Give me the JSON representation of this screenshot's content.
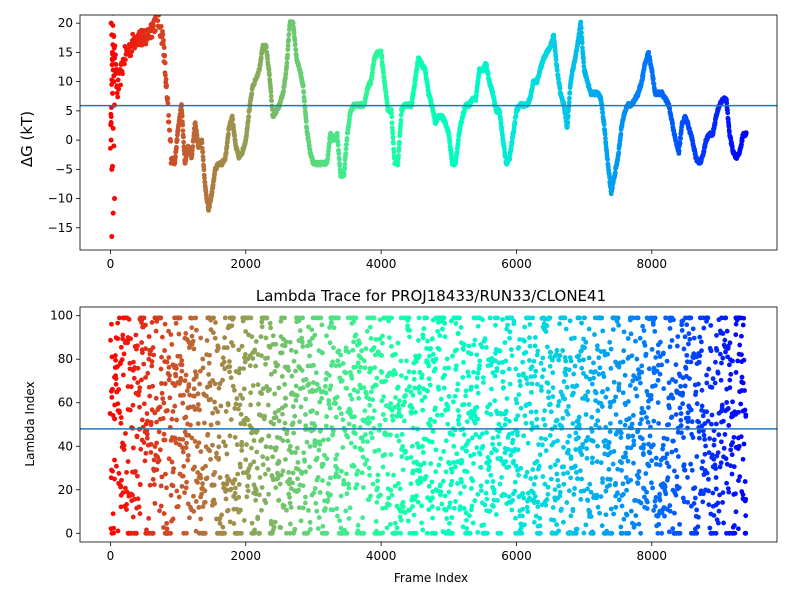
{
  "chart_data": [
    {
      "type": "scatter",
      "title": "",
      "xlabel": "",
      "ylabel": "ΔG (kT)",
      "xlim": [
        -450,
        9850
      ],
      "ylim": [
        -18.8,
        21.4
      ],
      "xticks": [
        0,
        2000,
        4000,
        6000,
        8000
      ],
      "xtick_labels": [
        "0",
        "2000",
        "4000",
        "6000",
        "8000"
      ],
      "yticks": [
        -15,
        -10,
        -5,
        0,
        5,
        10,
        15,
        20
      ],
      "ytick_labels": [
        "−15",
        "−10",
        "−5",
        "0",
        "5",
        "10",
        "15",
        "20"
      ],
      "hline": 5.9,
      "ref_line_color": "#1f77b4",
      "colormap": "rainbow (reversed: early frames red, late frames violet)",
      "x_max": 9400,
      "trace": [
        [
          0,
          0
        ],
        [
          40,
          20
        ],
        [
          100,
          8
        ],
        [
          200,
          14
        ],
        [
          300,
          16
        ],
        [
          400,
          18
        ],
        [
          500,
          17
        ],
        [
          600,
          19
        ],
        [
          700,
          21
        ],
        [
          780,
          17
        ],
        [
          830,
          8
        ],
        [
          900,
          -3
        ],
        [
          950,
          -4
        ],
        [
          1000,
          2
        ],
        [
          1050,
          6
        ],
        [
          1100,
          -4
        ],
        [
          1150,
          -1
        ],
        [
          1200,
          -3
        ],
        [
          1250,
          3
        ],
        [
          1300,
          -1
        ],
        [
          1350,
          0
        ],
        [
          1400,
          -8
        ],
        [
          1450,
          -12
        ],
        [
          1500,
          -9
        ],
        [
          1550,
          -5
        ],
        [
          1600,
          -4
        ],
        [
          1650,
          -4
        ],
        [
          1700,
          -3
        ],
        [
          1750,
          2
        ],
        [
          1800,
          4
        ],
        [
          1850,
          -1
        ],
        [
          1900,
          -3
        ],
        [
          1950,
          -2
        ],
        [
          2000,
          0
        ],
        [
          2050,
          5
        ],
        [
          2100,
          9
        ],
        [
          2200,
          12
        ],
        [
          2250,
          16
        ],
        [
          2300,
          16
        ],
        [
          2350,
          11
        ],
        [
          2400,
          4
        ],
        [
          2450,
          5
        ],
        [
          2500,
          6
        ],
        [
          2550,
          8
        ],
        [
          2600,
          12
        ],
        [
          2650,
          20
        ],
        [
          2700,
          20
        ],
        [
          2750,
          14
        ],
        [
          2800,
          12
        ],
        [
          2850,
          9
        ],
        [
          2900,
          2
        ],
        [
          2950,
          -2
        ],
        [
          3000,
          -4
        ],
        [
          3100,
          -4
        ],
        [
          3200,
          -4
        ],
        [
          3250,
          1
        ],
        [
          3300,
          0
        ],
        [
          3350,
          1
        ],
        [
          3400,
          -6
        ],
        [
          3450,
          -6
        ],
        [
          3500,
          1
        ],
        [
          3550,
          5
        ],
        [
          3600,
          6
        ],
        [
          3650,
          6
        ],
        [
          3700,
          6
        ],
        [
          3750,
          6
        ],
        [
          3800,
          9
        ],
        [
          3850,
          10
        ],
        [
          3900,
          14
        ],
        [
          3950,
          15
        ],
        [
          4000,
          15
        ],
        [
          4050,
          10
        ],
        [
          4100,
          5
        ],
        [
          4150,
          5
        ],
        [
          4200,
          -4
        ],
        [
          4250,
          -4
        ],
        [
          4300,
          5
        ],
        [
          4350,
          6
        ],
        [
          4400,
          6
        ],
        [
          4450,
          6
        ],
        [
          4500,
          10
        ],
        [
          4550,
          14
        ],
        [
          4600,
          13
        ],
        [
          4650,
          12
        ],
        [
          4700,
          8
        ],
        [
          4750,
          6
        ],
        [
          4800,
          3
        ],
        [
          4850,
          4
        ],
        [
          4900,
          4
        ],
        [
          4950,
          3
        ],
        [
          5000,
          1
        ],
        [
          5050,
          -4
        ],
        [
          5100,
          -4
        ],
        [
          5150,
          1
        ],
        [
          5200,
          4
        ],
        [
          5250,
          6
        ],
        [
          5300,
          6
        ],
        [
          5350,
          7
        ],
        [
          5400,
          7
        ],
        [
          5450,
          12
        ],
        [
          5500,
          12
        ],
        [
          5550,
          13
        ],
        [
          5600,
          10
        ],
        [
          5650,
          8
        ],
        [
          5700,
          5
        ],
        [
          5750,
          5
        ],
        [
          5800,
          0
        ],
        [
          5850,
          -4
        ],
        [
          5900,
          -3
        ],
        [
          5950,
          1
        ],
        [
          6000,
          5
        ],
        [
          6050,
          6
        ],
        [
          6100,
          6
        ],
        [
          6150,
          6
        ],
        [
          6200,
          7
        ],
        [
          6250,
          10
        ],
        [
          6300,
          10
        ],
        [
          6350,
          12
        ],
        [
          6400,
          14
        ],
        [
          6450,
          15
        ],
        [
          6500,
          16
        ],
        [
          6550,
          18
        ],
        [
          6600,
          12
        ],
        [
          6650,
          8
        ],
        [
          6700,
          6
        ],
        [
          6750,
          2
        ],
        [
          6800,
          10
        ],
        [
          6850,
          13
        ],
        [
          6900,
          16
        ],
        [
          6950,
          20
        ],
        [
          7000,
          12
        ],
        [
          7050,
          10
        ],
        [
          7100,
          8
        ],
        [
          7150,
          8
        ],
        [
          7200,
          8
        ],
        [
          7250,
          7
        ],
        [
          7300,
          2
        ],
        [
          7350,
          -4
        ],
        [
          7400,
          -9
        ],
        [
          7450,
          -6
        ],
        [
          7500,
          -3
        ],
        [
          7550,
          2
        ],
        [
          7600,
          5
        ],
        [
          7650,
          6
        ],
        [
          7700,
          6
        ],
        [
          7750,
          7
        ],
        [
          7800,
          8
        ],
        [
          7850,
          10
        ],
        [
          7900,
          13
        ],
        [
          7950,
          15
        ],
        [
          8000,
          12
        ],
        [
          8050,
          8
        ],
        [
          8100,
          8
        ],
        [
          8150,
          8
        ],
        [
          8200,
          7
        ],
        [
          8250,
          6
        ],
        [
          8300,
          3
        ],
        [
          8350,
          0
        ],
        [
          8400,
          -2
        ],
        [
          8450,
          3
        ],
        [
          8500,
          4
        ],
        [
          8550,
          2
        ],
        [
          8600,
          0
        ],
        [
          8650,
          -3
        ],
        [
          8700,
          -4
        ],
        [
          8750,
          -3
        ],
        [
          8800,
          0
        ],
        [
          8850,
          1
        ],
        [
          8900,
          1
        ],
        [
          8950,
          4
        ],
        [
          9000,
          6
        ],
        [
          9050,
          7
        ],
        [
          9100,
          7
        ],
        [
          9150,
          1
        ],
        [
          9200,
          -2
        ],
        [
          9250,
          -3
        ],
        [
          9300,
          -2
        ],
        [
          9350,
          1
        ],
        [
          9400,
          1
        ]
      ],
      "early_spread": [
        20,
        -16.5,
        15,
        -12.5,
        10,
        -10,
        3,
        -5,
        8,
        12,
        -1,
        6,
        0,
        18,
        -4.5,
        2,
        11,
        14
      ]
    },
    {
      "type": "scatter",
      "title": "Lambda Trace for PROJ18433/RUN33/CLONE41",
      "xlabel": "Frame Index",
      "ylabel": "Lambda Index",
      "xlim": [
        -450,
        9850
      ],
      "ylim": [
        -4,
        104
      ],
      "xticks": [
        0,
        2000,
        4000,
        6000,
        8000
      ],
      "xtick_labels": [
        "0",
        "2000",
        "4000",
        "6000",
        "8000"
      ],
      "yticks": [
        0,
        20,
        40,
        60,
        80,
        100
      ],
      "ytick_labels": [
        "0",
        "20",
        "40",
        "60",
        "80",
        "100"
      ],
      "hline": 48,
      "ref_line_color": "#1f77b4",
      "colormap": "rainbow (reversed: early frames red, late frames violet)",
      "x_max": 9400,
      "y_range": [
        0,
        99
      ],
      "point_count": 3000
    }
  ]
}
